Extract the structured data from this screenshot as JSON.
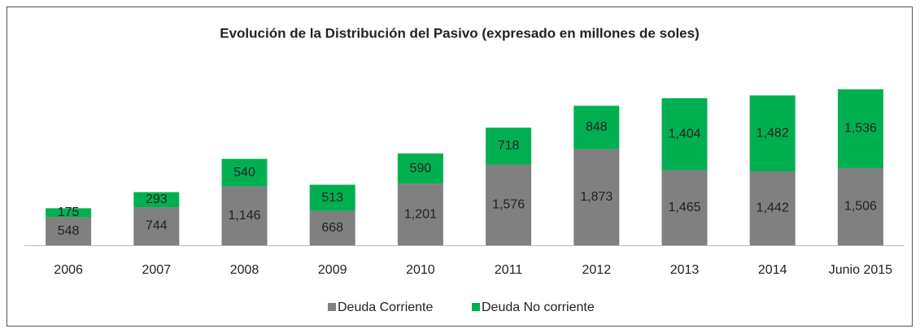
{
  "chart_data": {
    "type": "stacked_bar",
    "title": "Evolución de la Distribución del Pasivo (expresado en millones de soles)",
    "categories": [
      "2006",
      "2007",
      "2008",
      "2009",
      "2010",
      "2011",
      "2012",
      "2013",
      "2014",
      "Junio 2015"
    ],
    "series": [
      {
        "name": "Deuda Corriente",
        "color": "#808080",
        "values": [
          548,
          744,
          1146,
          668,
          1201,
          1576,
          1873,
          1465,
          1442,
          1506
        ],
        "value_labels": [
          "548",
          "744",
          "1,146",
          "668",
          "1,201",
          "1,576",
          "1,873",
          "1,465",
          "1,442",
          "1,506"
        ]
      },
      {
        "name": "Deuda No corriente",
        "color": "#00b050",
        "values": [
          175,
          293,
          540,
          513,
          590,
          718,
          848,
          1404,
          1482,
          1536
        ],
        "value_labels": [
          "175",
          "293",
          "540",
          "513",
          "590",
          "718",
          "848",
          "1,404",
          "1,482",
          "1,536"
        ]
      }
    ],
    "legend": "bottom"
  }
}
